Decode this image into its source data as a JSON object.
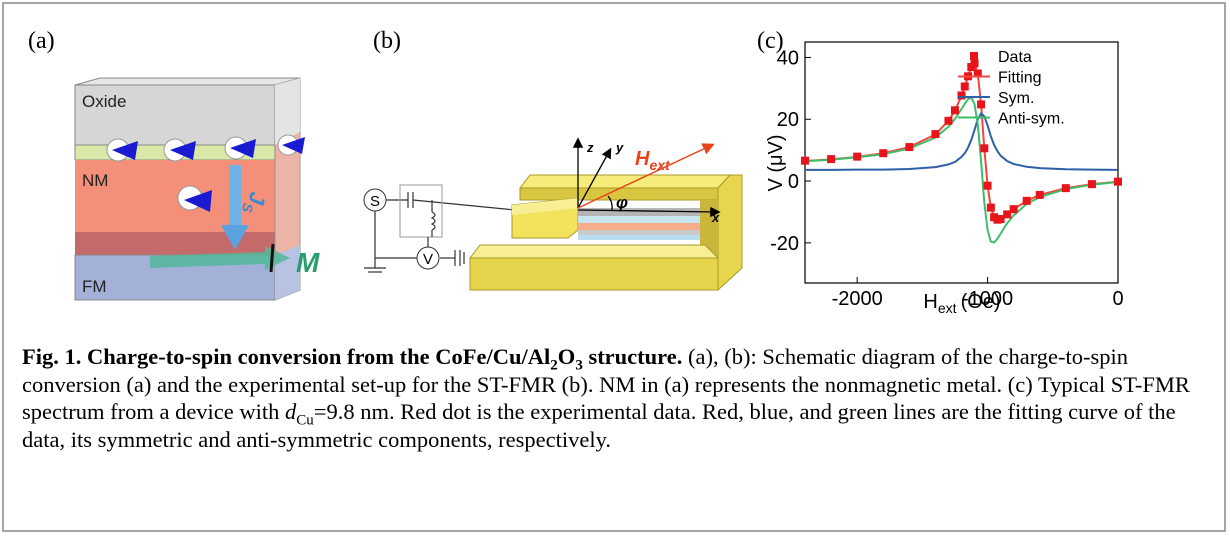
{
  "panels": {
    "a": {
      "label": "(a)",
      "oxide": "Oxide",
      "nm": "NM",
      "fm": "FM",
      "js_main": "J",
      "js_sub": "S",
      "m": "M"
    },
    "b": {
      "label": "(b)",
      "source": "S",
      "meter": "V",
      "z": "z",
      "y": "y",
      "x": "x",
      "h_main": "H",
      "h_sub": "ext",
      "phi": "φ"
    },
    "c": {
      "label": "(c)"
    }
  },
  "chart_data": {
    "type": "line",
    "y_label": "V (μV)",
    "x_label_main": "H",
    "x_label_sub": "ext",
    "x_label_unit": "(Oe)",
    "x": [
      -2400,
      -2200,
      -2000,
      -1800,
      -1600,
      -1400,
      -1300,
      -1250,
      -1200,
      -1175,
      -1150,
      -1125,
      -1100,
      -1075,
      -1050,
      -1025,
      -1000,
      -975,
      -950,
      -925,
      -900,
      -850,
      -800,
      -700,
      -600,
      -400,
      -200,
      0
    ],
    "series": [
      {
        "name": "Data",
        "color": "#e8141c",
        "style": "markers",
        "values": [
          6.6,
          7.1,
          7.9,
          9.0,
          11.0,
          15.2,
          19.5,
          22.9,
          27.7,
          30.6,
          33.9,
          36.9,
          38.1,
          34.8,
          24.8,
          10.6,
          -1.5,
          -8.6,
          -11.7,
          -12.5,
          -12.3,
          -10.8,
          -9.1,
          -6.4,
          -4.5,
          -2.3,
          -1.0,
          -0.2
        ]
      },
      {
        "name": "Fitting",
        "color": "#f0473f",
        "style": "line",
        "values": [
          6.5,
          7.0,
          7.8,
          9.0,
          11.0,
          15.1,
          19.5,
          22.8,
          27.6,
          30.6,
          33.8,
          36.8,
          38.0,
          34.7,
          24.7,
          10.6,
          -1.5,
          -8.5,
          -11.6,
          -12.5,
          -12.3,
          -10.8,
          -9.1,
          -6.4,
          -4.5,
          -2.3,
          -1.0,
          -0.2
        ]
      },
      {
        "name": "Sym.",
        "color": "#2e5fa8",
        "style": "line",
        "values": [
          3.6,
          3.6,
          3.7,
          3.7,
          3.9,
          4.5,
          5.4,
          6.2,
          7.8,
          9.0,
          10.8,
          13.3,
          16.5,
          20.0,
          21.9,
          21.0,
          18.0,
          14.5,
          11.7,
          9.7,
          8.2,
          6.5,
          5.5,
          4.6,
          4.2,
          3.8,
          3.7,
          3.6
        ]
      },
      {
        "name": "Anti-sym.",
        "color": "#3dbf6a",
        "style": "line",
        "values": [
          6.4,
          6.9,
          7.7,
          8.7,
          10.5,
          14.1,
          17.6,
          20.1,
          23.3,
          25.0,
          26.5,
          27.0,
          24.9,
          18.3,
          6.3,
          -7.0,
          -15.9,
          -19.6,
          -19.9,
          -18.7,
          -17.0,
          -13.7,
          -11.1,
          -7.4,
          -5.2,
          -2.6,
          -1.2,
          -0.3
        ]
      }
    ],
    "xlim": [
      -2400,
      0
    ],
    "ylim": [
      -33,
      45
    ],
    "xticks": [
      -2000,
      -1000,
      0
    ],
    "yticks": [
      -20,
      0,
      20,
      40
    ],
    "legend": "upper right"
  },
  "caption": {
    "title_pre": "Fig. 1. Charge-to-spin conversion from the CoFe/Cu/Al",
    "sub1": "2",
    "title_mid": "O",
    "sub2": "3",
    "title_post": " structure.",
    "body1": " (a), (b): Schematic diagram of the charge-to-spin conversion (a) and the experimental set-up for the ST-FMR (b). NM in (a) represents the nonmagnetic metal. (c) Typical ST-FMR spectrum from a device with ",
    "d": "d",
    "d_sub": "Cu",
    "body2": "=9.8 nm. Red dot is the experimental data. Red, blue, and green lines are the fitting curve of the data, its symmetric and anti-symmetric components, respectively."
  }
}
